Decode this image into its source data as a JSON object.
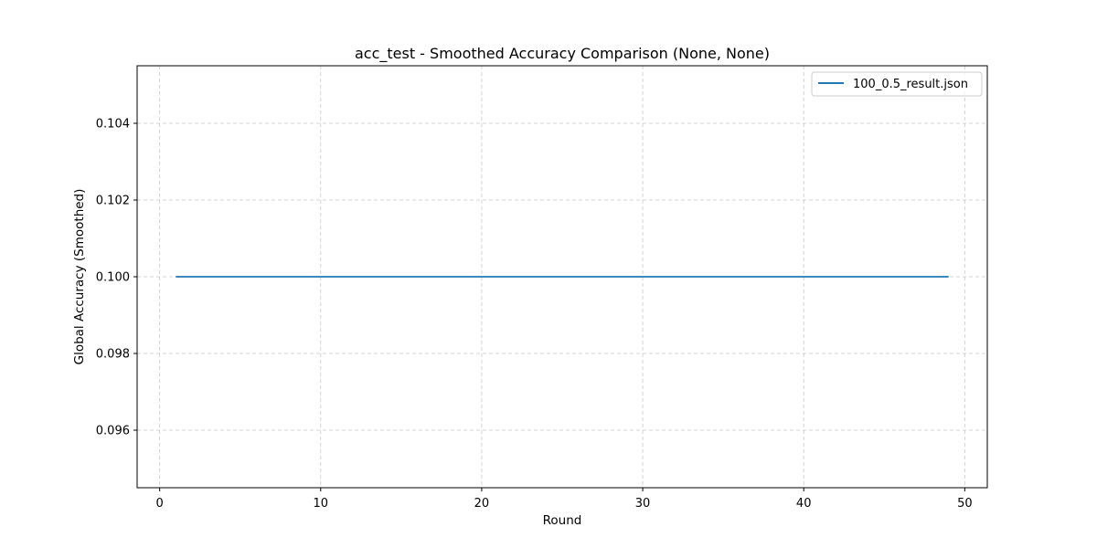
{
  "chart_data": {
    "type": "line",
    "title": "acc_test - Smoothed Accuracy Comparison (None, None)",
    "xlabel": "Round",
    "ylabel": "Global Accuracy (Smoothed)",
    "xlim": [
      -1.4,
      51.4
    ],
    "ylim": [
      0.0945,
      0.1055
    ],
    "xticks": [
      0,
      10,
      20,
      30,
      40,
      50
    ],
    "xtick_labels": [
      "0",
      "10",
      "20",
      "30",
      "40",
      "50"
    ],
    "yticks": [
      0.096,
      0.098,
      0.1,
      0.102,
      0.104
    ],
    "ytick_labels": [
      "0.096",
      "0.098",
      "0.100",
      "0.102",
      "0.104"
    ],
    "grid": true,
    "legend_position": "top-right",
    "series": [
      {
        "name": "100_0.5_result.json",
        "color": "#1f77b4",
        "x": [
          1,
          49
        ],
        "y": [
          0.1,
          0.1
        ]
      }
    ]
  }
}
